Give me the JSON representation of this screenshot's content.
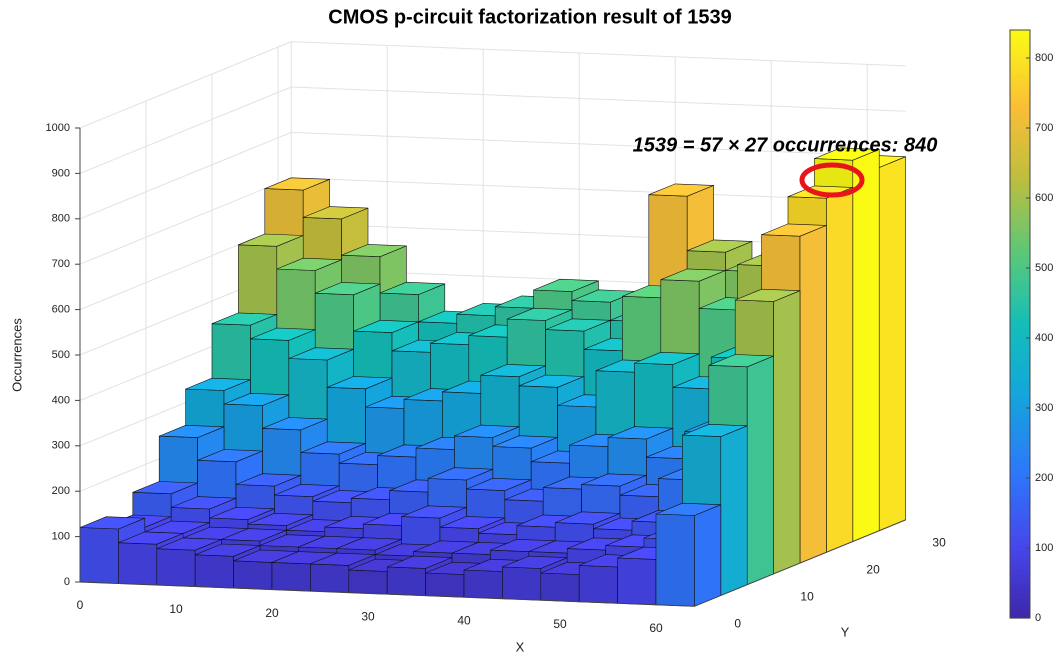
{
  "chart_data": {
    "type": "bar3d",
    "title": "CMOS p-circuit factorization result of 1539",
    "annotation": "1539 = 57 × 27  occurrences: 840",
    "xlabel": "X",
    "ylabel": "Y",
    "zlabel": "Occurrences",
    "colormap": "parula",
    "x": [
      2,
      6,
      10,
      14,
      18,
      22,
      26,
      30,
      34,
      38,
      42,
      46,
      50,
      54,
      58,
      62
    ],
    "y": [
      2,
      6,
      10,
      14,
      18,
      22,
      26,
      30
    ],
    "values": [
      [
        120,
        90,
        80,
        70,
        60,
        60,
        60,
        50,
        60,
        50,
        60,
        70,
        60,
        80,
        100,
        200
      ],
      [
        100,
        90,
        80,
        80,
        70,
        70,
        70,
        60,
        70,
        70,
        80,
        80,
        90,
        100,
        120,
        350
      ],
      [
        150,
        120,
        100,
        90,
        80,
        90,
        100,
        120,
        100,
        90,
        110,
        120,
        110,
        130,
        160,
        480
      ],
      [
        250,
        200,
        150,
        130,
        120,
        130,
        150,
        180,
        160,
        140,
        170,
        180,
        160,
        200,
        250,
        600
      ],
      [
        330,
        300,
        250,
        200,
        180,
        200,
        220,
        250,
        230,
        200,
        240,
        260,
        220,
        280,
        350,
        720
      ],
      [
        450,
        420,
        380,
        320,
        280,
        300,
        320,
        360,
        340,
        300,
        380,
        400,
        350,
        420,
        500,
        780
      ],
      [
        600,
        550,
        500,
        420,
        380,
        400,
        420,
        460,
        440,
        400,
        520,
        560,
        500,
        600,
        680,
        840
      ],
      [
        700,
        640,
        560,
        480,
        420,
        440,
        460,
        500,
        480,
        440,
        720,
        600,
        560,
        640,
        720,
        800
      ]
    ],
    "xlim": [
      0,
      64
    ],
    "ylim": [
      0,
      32
    ],
    "zlim": [
      0,
      1000
    ],
    "xticks": [
      0,
      10,
      20,
      30,
      40,
      50,
      60
    ],
    "yticks": [
      0,
      10,
      20,
      30
    ],
    "zticks": [
      0,
      100,
      200,
      300,
      400,
      500,
      600,
      700,
      800,
      900,
      1000
    ],
    "clim": [
      0,
      840
    ],
    "cticks": [
      0,
      100,
      200,
      300,
      400,
      500,
      600,
      700,
      800
    ],
    "grid": true
  }
}
